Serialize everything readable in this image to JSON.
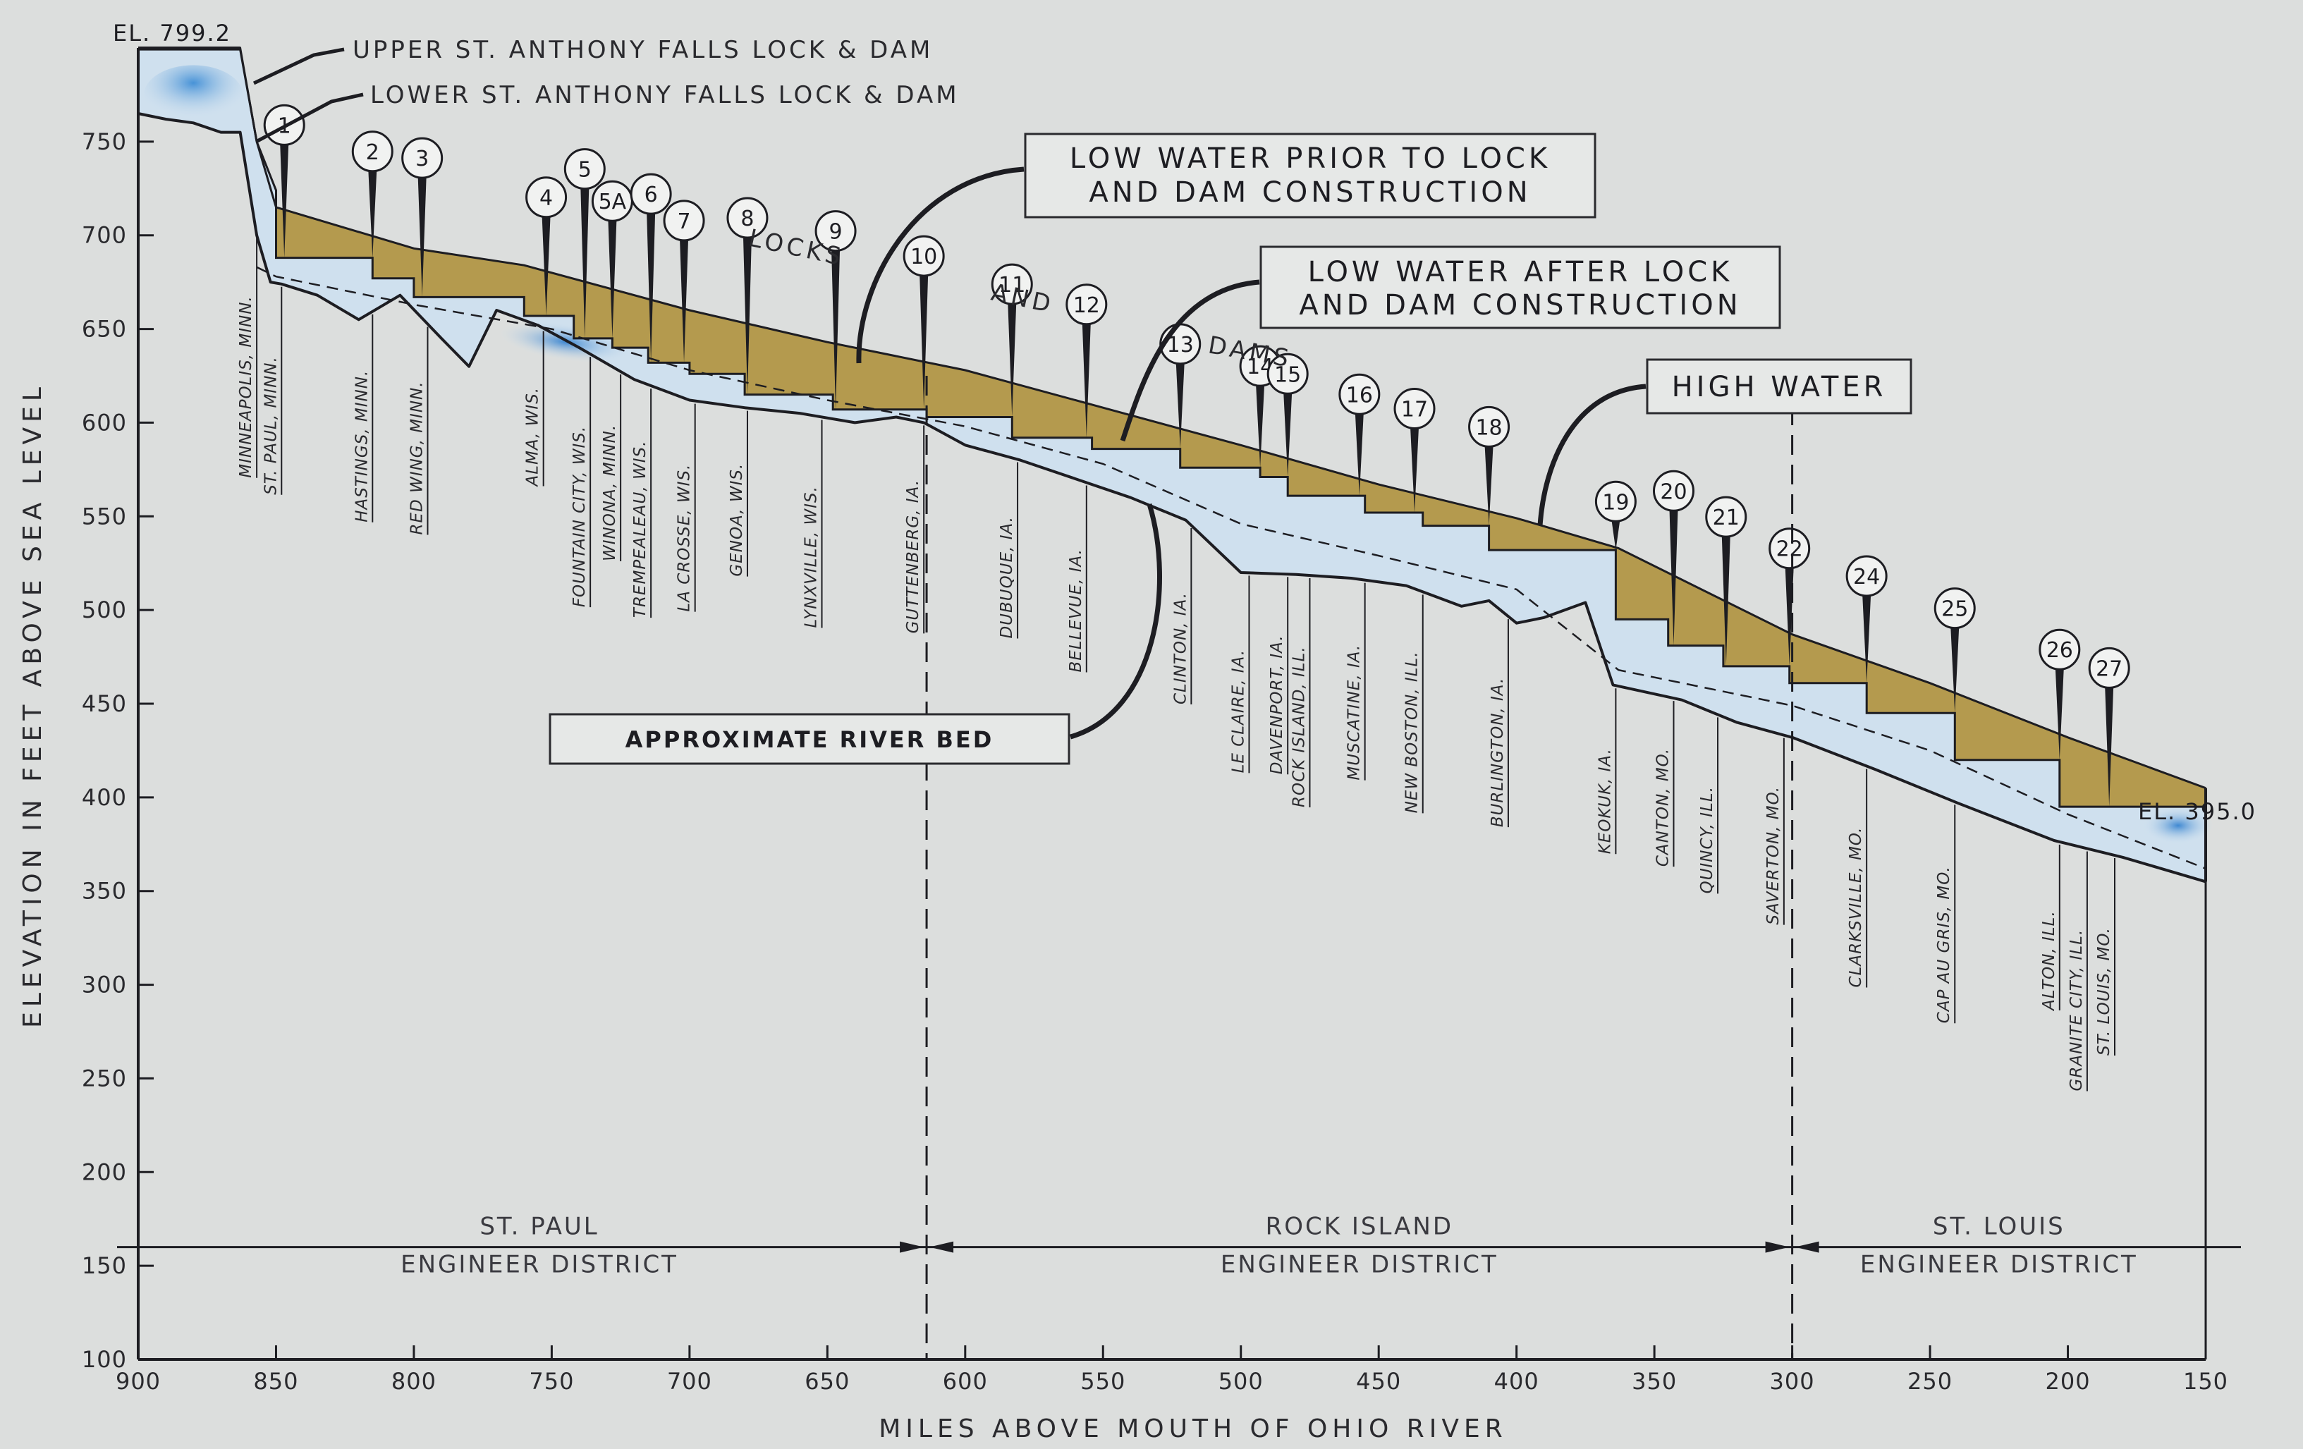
{
  "chart_data": {
    "type": "area",
    "xlabel": "MILES ABOVE MOUTH OF OHIO RIVER",
    "ylabel": "ELEVATION IN FEET ABOVE SEA LEVEL",
    "xlim": [
      900,
      150
    ],
    "ylim": [
      100,
      800
    ],
    "x_ticks": [
      900,
      850,
      800,
      750,
      700,
      650,
      600,
      550,
      500,
      450,
      400,
      350,
      300,
      250,
      200,
      150
    ],
    "y_ticks": [
      100,
      150,
      200,
      250,
      300,
      350,
      400,
      450,
      500,
      550,
      600,
      650,
      700,
      750
    ],
    "grid": false,
    "series": [
      {
        "name": "HIGH WATER",
        "mode": "line",
        "x": [
          900,
          863,
          857,
          850,
          800,
          760,
          700,
          650,
          600,
          550,
          500,
          450,
          400,
          363,
          300,
          250,
          200,
          150
        ],
        "y": [
          800,
          800,
          750,
          715,
          693,
          684,
          660,
          643,
          628,
          608,
          588,
          567,
          549,
          533,
          487,
          461,
          432,
          405
        ]
      },
      {
        "name": "LOW WATER AFTER LOCK AND DAM CONSTRUCTION",
        "mode": "step",
        "x": [
          900,
          863,
          857,
          850,
          850,
          815,
          815,
          800,
          800,
          760,
          760,
          742,
          742,
          728,
          728,
          715,
          715,
          700,
          700,
          680,
          680,
          648,
          648,
          614,
          614,
          583,
          583,
          554,
          554,
          522,
          522,
          493,
          493,
          483,
          483,
          455,
          455,
          434,
          434,
          410,
          410,
          364,
          364,
          345,
          345,
          325,
          325,
          301,
          301,
          273,
          273,
          241,
          241,
          203,
          203,
          150
        ],
        "y": [
          799.2,
          799.2,
          750,
          724,
          688,
          688,
          677,
          677,
          667,
          667,
          657,
          657,
          645,
          645,
          640,
          640,
          632,
          632,
          626,
          626,
          615,
          615,
          607,
          607,
          603,
          603,
          592,
          592,
          586,
          586,
          576,
          576,
          571,
          571,
          561,
          561,
          552,
          552,
          545,
          545,
          532,
          532,
          495,
          495,
          481,
          481,
          470,
          470,
          461,
          461,
          445,
          445,
          420,
          420,
          395,
          395
        ]
      },
      {
        "name": "LOW WATER PRIOR TO LOCK AND DAM CONSTRUCTION",
        "mode": "line",
        "x": [
          857,
          850,
          800,
          750,
          700,
          650,
          600,
          550,
          500,
          450,
          400,
          363,
          300,
          250,
          200,
          150
        ],
        "y": [
          683,
          678,
          663,
          650,
          628,
          612,
          598,
          578,
          546,
          529,
          511,
          468,
          449,
          425,
          391,
          362
        ]
      },
      {
        "name": "APPROXIMATE RIVER BED",
        "mode": "line",
        "x": [
          900,
          890,
          880,
          870,
          863,
          857,
          852,
          848,
          835,
          820,
          805,
          790,
          780,
          770,
          755,
          740,
          720,
          700,
          680,
          660,
          640,
          625,
          615,
          600,
          580,
          560,
          540,
          520,
          500,
          480,
          460,
          440,
          420,
          410,
          400,
          390,
          375,
          365,
          340,
          320,
          300,
          270,
          240,
          205,
          180,
          150
        ],
        "y": [
          765,
          762,
          760,
          755,
          755,
          700,
          675,
          674,
          668,
          655,
          668,
          645,
          630,
          660,
          652,
          640,
          623,
          612,
          608,
          605,
          600,
          603,
          600,
          588,
          580,
          570,
          560,
          548,
          520,
          519,
          517,
          513,
          502,
          505,
          493,
          496,
          504,
          460,
          452,
          440,
          432,
          415,
          397,
          377,
          368,
          355
        ]
      }
    ],
    "locks": [
      {
        "label": "1",
        "x": 847
      },
      {
        "label": "2",
        "x": 815
      },
      {
        "label": "3",
        "x": 797
      },
      {
        "label": "4",
        "x": 752
      },
      {
        "label": "5",
        "x": 738
      },
      {
        "label": "5A",
        "x": 728
      },
      {
        "label": "6",
        "x": 714
      },
      {
        "label": "7",
        "x": 702
      },
      {
        "label": "8",
        "x": 679
      },
      {
        "label": "9",
        "x": 647
      },
      {
        "label": "10",
        "x": 615
      },
      {
        "label": "11",
        "x": 583
      },
      {
        "label": "12",
        "x": 556
      },
      {
        "label": "13",
        "x": 522
      },
      {
        "label": "14",
        "x": 493
      },
      {
        "label": "15",
        "x": 483
      },
      {
        "label": "16",
        "x": 457
      },
      {
        "label": "17",
        "x": 437
      },
      {
        "label": "18",
        "x": 410
      },
      {
        "label": "19",
        "x": 364
      },
      {
        "label": "20",
        "x": 343
      },
      {
        "label": "21",
        "x": 324
      },
      {
        "label": "22",
        "x": 301
      },
      {
        "label": "24",
        "x": 273
      },
      {
        "label": "25",
        "x": 241
      },
      {
        "label": "26",
        "x": 203
      },
      {
        "label": "27",
        "x": 185
      }
    ],
    "places": [
      {
        "label": "MINNEAPOLIS, MINN.",
        "x": 857
      },
      {
        "label": "ST. PAUL, MINN.",
        "x": 848
      },
      {
        "label": "HASTINGS, MINN.",
        "x": 815
      },
      {
        "label": "RED WING, MINN.",
        "x": 795
      },
      {
        "label": "ALMA, WIS.",
        "x": 753
      },
      {
        "label": "FOUNTAIN CITY, WIS.",
        "x": 736
      },
      {
        "label": "WINONA, MINN.",
        "x": 725
      },
      {
        "label": "TREMPEALEAU, WIS.",
        "x": 714
      },
      {
        "label": "LA CROSSE, WIS.",
        "x": 698
      },
      {
        "label": "GENOA, WIS.",
        "x": 679
      },
      {
        "label": "LYNXVILLE, WIS.",
        "x": 652
      },
      {
        "label": "GUTTENBERG, IA.",
        "x": 615
      },
      {
        "label": "DUBUQUE, IA.",
        "x": 581
      },
      {
        "label": "BELLEVUE, IA.",
        "x": 556
      },
      {
        "label": "CLINTON, IA.",
        "x": 518
      },
      {
        "label": "LE CLAIRE, IA.",
        "x": 497
      },
      {
        "label": "DAVENPORT, IA.",
        "x": 483
      },
      {
        "label": "ROCK ISLAND, ILL.",
        "x": 475
      },
      {
        "label": "MUSCATINE, IA.",
        "x": 455
      },
      {
        "label": "NEW BOSTON, ILL.",
        "x": 434
      },
      {
        "label": "BURLINGTON, IA.",
        "x": 403
      },
      {
        "label": "KEOKUK, IA.",
        "x": 364
      },
      {
        "label": "CANTON, MO.",
        "x": 343
      },
      {
        "label": "QUINCY, ILL.",
        "x": 327
      },
      {
        "label": "SAVERTON, MO.",
        "x": 303
      },
      {
        "label": "CLARKSVILLE, MO.",
        "x": 273
      },
      {
        "label": "CAP AU GRIS, MO.",
        "x": 241
      },
      {
        "label": "ALTON, ILL.",
        "x": 203
      },
      {
        "label": "GRANITE CITY, ILL.",
        "x": 193
      },
      {
        "label": "ST. LOUIS, MO.",
        "x": 183
      }
    ],
    "districts": [
      {
        "line1": "ST. PAUL",
        "line2": "ENGINEER DISTRICT",
        "x_from": 900,
        "x_to": 614
      },
      {
        "line1": "ROCK ISLAND",
        "line2": "ENGINEER DISTRICT",
        "x_from": 614,
        "x_to": 300
      },
      {
        "line1": "ST. LOUIS",
        "line2": "ENGINEER DISTRICT",
        "x_from": 300,
        "x_to": 150
      }
    ],
    "district_boundaries": [
      614,
      300
    ],
    "annotations": {
      "el_top": "EL. 799.2",
      "el_bottom": "EL. 395.0",
      "upper_lock": "UPPER ST. ANTHONY FALLS LOCK & DAM",
      "lower_lock": "LOWER ST. ANTHONY FALLS LOCK & DAM",
      "low_prior_line1": "LOW WATER PRIOR TO LOCK",
      "low_prior_line2": "AND DAM CONSTRUCTION",
      "low_after_line1": "LOW WATER AFTER LOCK",
      "low_after_line2": "AND DAM CONSTRUCTION",
      "high_water": "HIGH WATER",
      "river_bed": "APPROXIMATE RIVER BED",
      "word_locks": "LOCKS",
      "word_and": "AND",
      "word_dams": "DAMS"
    },
    "colors": {
      "background": "#dcdedd",
      "pool": "#b49a4e",
      "water": "#cfe0ee",
      "water_deep": "#5e9fd6",
      "ink": "#1d1d22"
    }
  }
}
